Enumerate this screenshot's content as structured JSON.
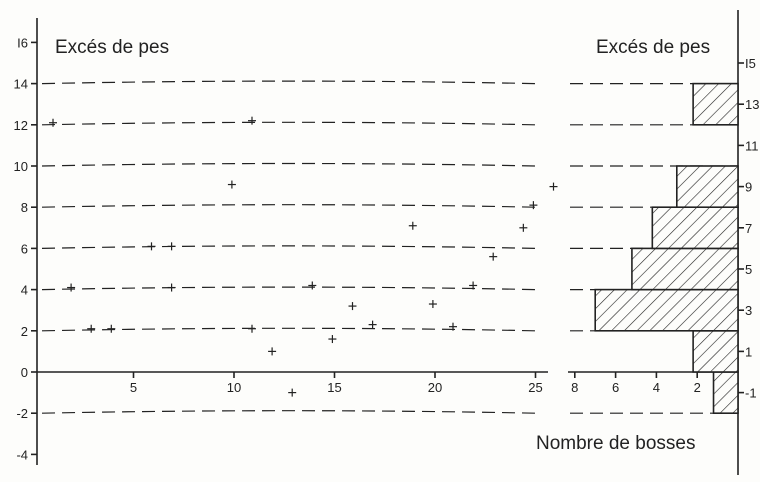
{
  "chart_data": [
    {
      "type": "scatter",
      "title": "Excés de pes",
      "xlabel": "",
      "ylabel": "",
      "xlim": [
        0,
        25
      ],
      "ylim": [
        -4,
        16
      ],
      "x_ticks": [
        5,
        10,
        15,
        20,
        25
      ],
      "y_ticks": [
        -4,
        -2,
        0,
        2,
        4,
        6,
        8,
        10,
        12,
        14,
        16
      ],
      "x_tick_labels": [
        "5",
        "10",
        "15",
        "20",
        "25"
      ],
      "y_tick_labels": [
        "-4",
        "-2",
        "0",
        "2",
        "4",
        "6",
        "8",
        "10",
        "12",
        "14",
        "I6"
      ],
      "reference_levels": [
        -2,
        2,
        4,
        6,
        8,
        10,
        12,
        14
      ],
      "points": [
        {
          "x": 0.1,
          "y": 12.1
        },
        {
          "x": 1.0,
          "y": 4.1
        },
        {
          "x": 2.0,
          "y": 2.1
        },
        {
          "x": 3.0,
          "y": 2.1
        },
        {
          "x": 5.0,
          "y": 6.1
        },
        {
          "x": 6.0,
          "y": 6.1
        },
        {
          "x": 6.0,
          "y": 4.1
        },
        {
          "x": 9.0,
          "y": 9.1
        },
        {
          "x": 10.0,
          "y": 12.2
        },
        {
          "x": 10.0,
          "y": 2.1
        },
        {
          "x": 11.0,
          "y": 1.0
        },
        {
          "x": 12.0,
          "y": -1.0
        },
        {
          "x": 13.0,
          "y": 4.2
        },
        {
          "x": 14.0,
          "y": 1.6
        },
        {
          "x": 15.0,
          "y": 3.2
        },
        {
          "x": 16.0,
          "y": 2.3
        },
        {
          "x": 18.0,
          "y": 7.1
        },
        {
          "x": 19.0,
          "y": 3.3
        },
        {
          "x": 20.0,
          "y": 2.2
        },
        {
          "x": 21.0,
          "y": 4.2
        },
        {
          "x": 22.0,
          "y": 5.6
        },
        {
          "x": 23.5,
          "y": 7.0
        },
        {
          "x": 24.0,
          "y": 8.1
        },
        {
          "x": 25.0,
          "y": 9.0
        }
      ]
    },
    {
      "type": "bar",
      "orientation": "horizontal",
      "title": "Excés de pes",
      "xlabel": "Nombre de bosses",
      "xlim": [
        0,
        8
      ],
      "x_direction": "reversed",
      "x_ticks": [
        2,
        4,
        6,
        8
      ],
      "x_tick_labels": [
        "2",
        "4",
        "6",
        "8"
      ],
      "category_labels": [
        "-1",
        "1",
        "3",
        "5",
        "7",
        "9",
        "11",
        "13",
        "I5"
      ],
      "bars": [
        {
          "y_from": -2,
          "y_to": 0,
          "value": 1.2
        },
        {
          "y_from": 0,
          "y_to": 2,
          "value": 2.2
        },
        {
          "y_from": 2,
          "y_to": 4,
          "value": 7.0
        },
        {
          "y_from": 4,
          "y_to": 6,
          "value": 5.2
        },
        {
          "y_from": 6,
          "y_to": 8,
          "value": 4.2
        },
        {
          "y_from": 8,
          "y_to": 10,
          "value": 3.0
        },
        {
          "y_from": 10,
          "y_to": 12,
          "value": 0
        },
        {
          "y_from": 12,
          "y_to": 14,
          "value": 2.2
        }
      ],
      "reference_levels": [
        -2,
        2,
        4,
        6,
        8,
        10,
        12,
        14
      ]
    }
  ]
}
